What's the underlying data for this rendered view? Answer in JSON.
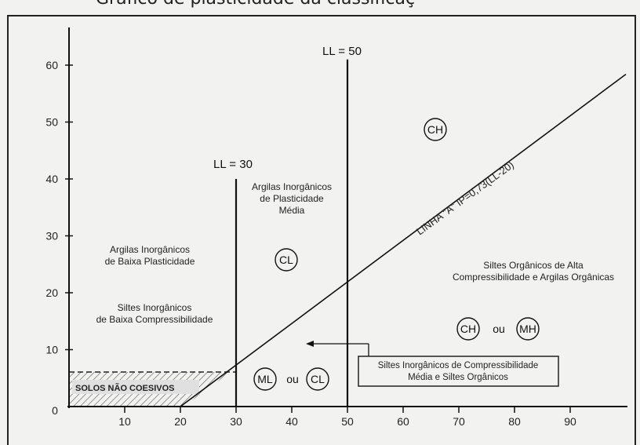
{
  "header": {
    "title": "Gráfico de plasticidade da classificaç"
  },
  "chart_data": {
    "type": "line",
    "title": "",
    "xlabel": "",
    "ylabel": "",
    "xlim": [
      0,
      100
    ],
    "ylim": [
      0,
      65
    ],
    "x_ticks": [
      0,
      10,
      20,
      30,
      40,
      50,
      60,
      70,
      80,
      90
    ],
    "y_ticks": [
      10,
      20,
      30,
      40,
      50,
      60
    ],
    "series": [
      {
        "name": "LINHA \"A\" IP=0,73(LL-20)",
        "x": [
          20,
          100
        ],
        "y": [
          0,
          58.4
        ]
      },
      {
        "name": "LL = 30",
        "x": [
          30,
          30
        ],
        "y": [
          0,
          40
        ]
      },
      {
        "name": "LL = 50",
        "x": [
          50,
          50
        ],
        "y": [
          0,
          61
        ]
      }
    ],
    "regions": {
      "low_clay": {
        "lines": [
          "Argilas Inorgânicos",
          "de Baixa Plasticidade"
        ]
      },
      "low_silt": {
        "lines": [
          "Siltes Inorgânicos",
          "de Baixa Compressibilidade"
        ]
      },
      "medium_clay": {
        "lines": [
          "Argilas Inorgânicos",
          "de  Plasticidade",
          "Média"
        ]
      },
      "high_organic": {
        "lines": [
          "Siltes Orgânicos de Alta",
          "Compressibilidade e Argilas Orgânicas"
        ]
      },
      "callout": {
        "lines": [
          "Siltes Inorgânicos de Compressibilidade",
          "Média e Siltes Orgânicos"
        ]
      },
      "non_cohesive": "SOLOS NÃO COESIVOS"
    },
    "symbols": {
      "ch": "CH",
      "cl": "CL",
      "ml": "ML",
      "ou": "ou",
      "mh": "MH"
    }
  }
}
